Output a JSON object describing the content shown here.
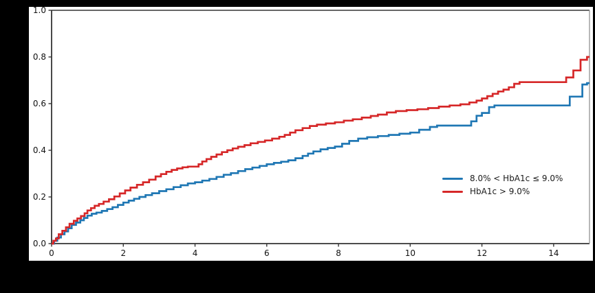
{
  "figure": {
    "page_background": "#000000",
    "canvas_background": "#ffffff",
    "spine_color": "#333333",
    "right_spine_color": "#999999",
    "tick_color": "#333333",
    "tick_label_color": "#111111"
  },
  "chart_data": {
    "type": "line",
    "subtype": "step_cumulative_incidence",
    "title": "",
    "xlabel": "",
    "ylabel": "",
    "grid": false,
    "xlim": [
      0,
      15
    ],
    "ylim": [
      0.0,
      1.0
    ],
    "xticks": [
      0,
      2,
      4,
      6,
      8,
      10,
      12,
      14
    ],
    "xtick_labels": [
      "0",
      "2",
      "4",
      "6",
      "8",
      "10",
      "12",
      "14"
    ],
    "yticks": [
      0.0,
      0.2,
      0.4,
      0.6,
      0.8,
      1.0
    ],
    "ytick_labels": [
      "0.0",
      "0.2",
      "0.4",
      "0.6",
      "0.8",
      "1.0"
    ],
    "legend": {
      "position": "center-right",
      "frame": false
    },
    "series": [
      {
        "name": "8.0% < HbA1c ≤ 9.0%",
        "color": "#1f77b4",
        "points": [
          [
            0,
            0
          ],
          [
            0.07,
            0.012
          ],
          [
            0.16,
            0.026
          ],
          [
            0.26,
            0.04
          ],
          [
            0.36,
            0.052
          ],
          [
            0.46,
            0.066
          ],
          [
            0.56,
            0.08
          ],
          [
            0.68,
            0.09
          ],
          [
            0.8,
            0.1
          ],
          [
            0.9,
            0.11
          ],
          [
            1.0,
            0.12
          ],
          [
            1.12,
            0.128
          ],
          [
            1.25,
            0.133
          ],
          [
            1.4,
            0.14
          ],
          [
            1.55,
            0.148
          ],
          [
            1.7,
            0.156
          ],
          [
            1.85,
            0.166
          ],
          [
            2.0,
            0.176
          ],
          [
            2.15,
            0.184
          ],
          [
            2.3,
            0.192
          ],
          [
            2.45,
            0.2
          ],
          [
            2.62,
            0.208
          ],
          [
            2.8,
            0.216
          ],
          [
            3.0,
            0.225
          ],
          [
            3.2,
            0.233
          ],
          [
            3.4,
            0.242
          ],
          [
            3.6,
            0.25
          ],
          [
            3.8,
            0.258
          ],
          [
            4.0,
            0.263
          ],
          [
            4.2,
            0.27
          ],
          [
            4.4,
            0.277
          ],
          [
            4.6,
            0.286
          ],
          [
            4.8,
            0.295
          ],
          [
            5.0,
            0.302
          ],
          [
            5.2,
            0.311
          ],
          [
            5.4,
            0.319
          ],
          [
            5.6,
            0.326
          ],
          [
            5.8,
            0.333
          ],
          [
            6.0,
            0.34
          ],
          [
            6.2,
            0.346
          ],
          [
            6.4,
            0.351
          ],
          [
            6.6,
            0.357
          ],
          [
            6.8,
            0.366
          ],
          [
            7.0,
            0.376
          ],
          [
            7.15,
            0.386
          ],
          [
            7.3,
            0.395
          ],
          [
            7.5,
            0.404
          ],
          [
            7.7,
            0.41
          ],
          [
            7.9,
            0.416
          ],
          [
            8.1,
            0.428
          ],
          [
            8.3,
            0.44
          ],
          [
            8.55,
            0.45
          ],
          [
            8.8,
            0.456
          ],
          [
            9.1,
            0.461
          ],
          [
            9.4,
            0.466
          ],
          [
            9.7,
            0.471
          ],
          [
            10.0,
            0.476
          ],
          [
            10.25,
            0.488
          ],
          [
            10.55,
            0.5
          ],
          [
            10.75,
            0.506
          ],
          [
            11.7,
            0.524
          ],
          [
            11.85,
            0.548
          ],
          [
            12.0,
            0.56
          ],
          [
            12.2,
            0.585
          ],
          [
            12.35,
            0.592
          ],
          [
            14.45,
            0.63
          ],
          [
            14.8,
            0.682
          ],
          [
            14.93,
            0.688
          ]
        ]
      },
      {
        "name": "HbA1c > 9.0%",
        "color": "#d62728",
        "points": [
          [
            0,
            0
          ],
          [
            0.05,
            0.012
          ],
          [
            0.12,
            0.022
          ],
          [
            0.2,
            0.04
          ],
          [
            0.3,
            0.055
          ],
          [
            0.4,
            0.07
          ],
          [
            0.5,
            0.085
          ],
          [
            0.62,
            0.098
          ],
          [
            0.72,
            0.108
          ],
          [
            0.82,
            0.118
          ],
          [
            0.92,
            0.13
          ],
          [
            1.0,
            0.142
          ],
          [
            1.1,
            0.152
          ],
          [
            1.2,
            0.162
          ],
          [
            1.32,
            0.17
          ],
          [
            1.45,
            0.18
          ],
          [
            1.6,
            0.19
          ],
          [
            1.75,
            0.202
          ],
          [
            1.9,
            0.215
          ],
          [
            2.05,
            0.228
          ],
          [
            2.2,
            0.24
          ],
          [
            2.38,
            0.252
          ],
          [
            2.55,
            0.263
          ],
          [
            2.72,
            0.274
          ],
          [
            2.9,
            0.288
          ],
          [
            3.05,
            0.298
          ],
          [
            3.2,
            0.308
          ],
          [
            3.35,
            0.316
          ],
          [
            3.5,
            0.322
          ],
          [
            3.65,
            0.327
          ],
          [
            3.8,
            0.33
          ],
          [
            4.1,
            0.34
          ],
          [
            4.2,
            0.352
          ],
          [
            4.32,
            0.362
          ],
          [
            4.45,
            0.372
          ],
          [
            4.6,
            0.382
          ],
          [
            4.75,
            0.392
          ],
          [
            4.9,
            0.4
          ],
          [
            5.05,
            0.408
          ],
          [
            5.2,
            0.415
          ],
          [
            5.38,
            0.422
          ],
          [
            5.55,
            0.43
          ],
          [
            5.75,
            0.436
          ],
          [
            5.95,
            0.442
          ],
          [
            6.15,
            0.45
          ],
          [
            6.35,
            0.458
          ],
          [
            6.5,
            0.466
          ],
          [
            6.65,
            0.476
          ],
          [
            6.8,
            0.486
          ],
          [
            7.0,
            0.495
          ],
          [
            7.2,
            0.504
          ],
          [
            7.4,
            0.51
          ],
          [
            7.65,
            0.515
          ],
          [
            7.9,
            0.52
          ],
          [
            8.15,
            0.527
          ],
          [
            8.4,
            0.533
          ],
          [
            8.65,
            0.54
          ],
          [
            8.9,
            0.547
          ],
          [
            9.1,
            0.553
          ],
          [
            9.35,
            0.562
          ],
          [
            9.6,
            0.568
          ],
          [
            9.9,
            0.572
          ],
          [
            10.2,
            0.576
          ],
          [
            10.5,
            0.581
          ],
          [
            10.8,
            0.587
          ],
          [
            11.1,
            0.592
          ],
          [
            11.4,
            0.597
          ],
          [
            11.65,
            0.605
          ],
          [
            11.85,
            0.613
          ],
          [
            12.0,
            0.622
          ],
          [
            12.15,
            0.632
          ],
          [
            12.3,
            0.642
          ],
          [
            12.45,
            0.652
          ],
          [
            12.6,
            0.66
          ],
          [
            12.75,
            0.67
          ],
          [
            12.9,
            0.685
          ],
          [
            13.05,
            0.692
          ],
          [
            14.35,
            0.712
          ],
          [
            14.55,
            0.742
          ],
          [
            14.75,
            0.788
          ],
          [
            14.93,
            0.8
          ]
        ]
      }
    ]
  }
}
